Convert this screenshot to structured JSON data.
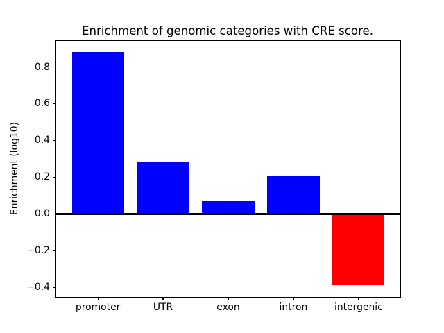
{
  "chart_data": {
    "type": "bar",
    "title": "Enrichment of genomic categories with CRE score.",
    "xlabel": "",
    "ylabel": "Enrichment (log10)",
    "categories": [
      "promoter",
      "UTR",
      "exon",
      "intron",
      "intergenic"
    ],
    "values": [
      0.88,
      0.28,
      0.07,
      0.21,
      -0.39
    ],
    "bar_colors": [
      "#0000ff",
      "#0000ff",
      "#0000ff",
      "#0000ff",
      "#ff0000"
    ],
    "positive_color": "#0000ff",
    "negative_color": "#ff0000",
    "baseline": 0,
    "bar_width": 0.8,
    "yticks": [
      0.8,
      0.6,
      0.4,
      0.2,
      0.0,
      -0.2,
      -0.4
    ],
    "ytick_labels": [
      "0.8",
      "0.6",
      "0.4",
      "0.2",
      "0.0",
      "−0.2",
      "−0.4"
    ],
    "ylim": [
      -0.4535,
      0.9435
    ],
    "xlim": [
      -0.64,
      4.64
    ],
    "grid": false,
    "legend": false,
    "axis_color": "#000000",
    "zero_line_color": "#000000",
    "background_color": "#ffffff"
  }
}
